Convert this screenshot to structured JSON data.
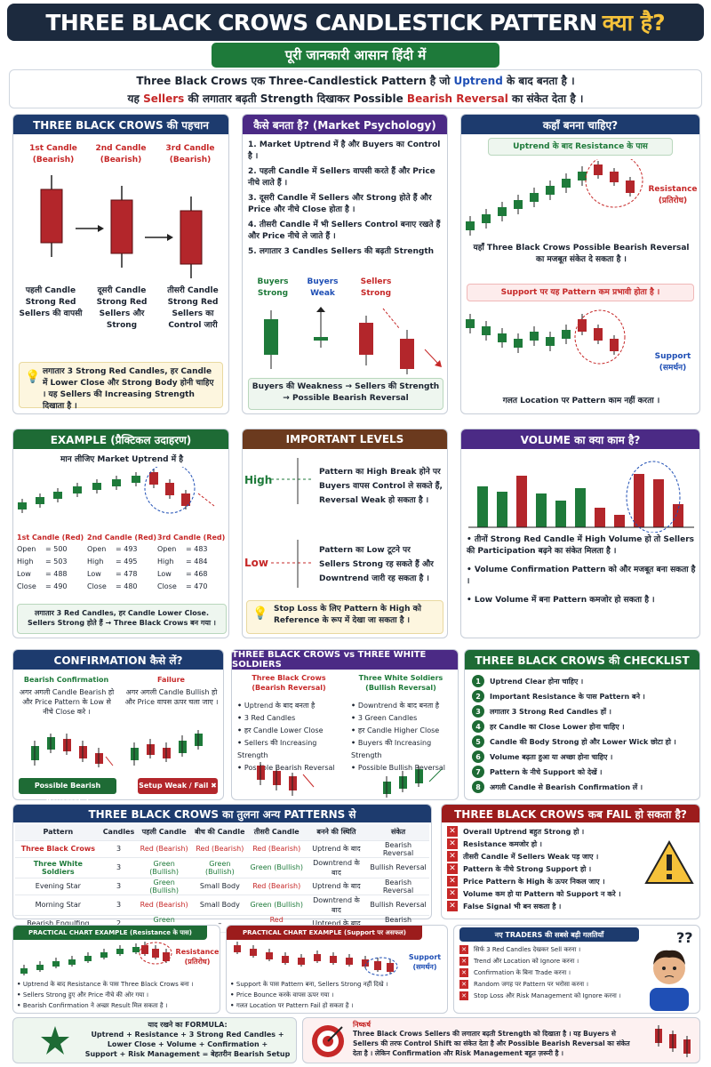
{
  "header": {
    "title": "THREE BLACK CROWS CANDLESTICK PATTERN",
    "title_suffix": "क्या है?",
    "subtitle": "पूरी जानकारी आसान हिंदी में"
  },
  "intro": {
    "l1a": "Three Black Crows एक Three-Candlestick Pattern है जो ",
    "l1b": "Uptrend",
    "l1c": " के बाद बनता है ।",
    "l2a": "यह ",
    "l2b": "Sellers",
    "l2c": " की लगातार बढ़ती Strength दिखाकर Possible ",
    "l2d": "Bearish Reversal",
    "l2e": " का संकेत देता है ।"
  },
  "identify": {
    "title": "THREE BLACK CROWS की पहचान",
    "c1": "1st Candle",
    "c2": "2nd Candle",
    "c3": "3rd Candle",
    "bear": "(Bearish)",
    "d1": [
      "पहली Candle",
      "Strong Red",
      "Sellers की वापसी"
    ],
    "d2": [
      "दूसरी Candle",
      "Strong Red",
      "Sellers और",
      "Strong"
    ],
    "d3": [
      "तीसरी Candle",
      "Strong Red",
      "Sellers का",
      "Control जारी"
    ],
    "tip": "लगातार 3 Strong Red Candles, हर Candle में Lower Close और Strong Body होनी चाहिए । यह Sellers की Increasing Strength दिखाता है ।"
  },
  "psych": {
    "title": "कैसे बनता है? (Market Psychology)",
    "items": [
      "1.  Market Uptrend में है और Buyers का Control है ।",
      "2.  पहली Candle में Sellers वापसी करते हैं और Price नीचे लाते हैं ।",
      "3.  दूसरी Candle में Sellers और Strong होते हैं और Price और नीचे Close होता है ।",
      "4.  तीसरी Candle में भी Sellers Control बनाए रखते हैं और Price नीचे ले जाते हैं ।",
      "5.  लगातार 3 Candles Sellers की बढ़ती Strength"
    ],
    "b1": "Buyers",
    "b1b": "Strong",
    "b2": "Buyers",
    "b2b": "Weak",
    "b3": "Sellers",
    "b3b": "Strong",
    "summary1": "Buyers की Weakness → Sellers की Strength",
    "summary2": "→ Possible Bearish Reversal"
  },
  "where": {
    "title": "कहाँ बनना चाहिए?",
    "tag": "Uptrend के बाद Resistance के पास",
    "res": "Resistance",
    "res_hi": "(प्रतिरोध)",
    "good": "यहाँ Three Black Crows Possible Bearish Reversal का मजबूत संकेत दे सकता है ।",
    "tag2": "Support पर यह Pattern कम प्रभावी होता है ।",
    "sup": "Support",
    "sup_hi": "(समर्थन)",
    "bad": "गलत Location पर Pattern काम नहीं करता ।"
  },
  "example": {
    "title": "EXAMPLE (प्रैक्टिकल उदाहरण)",
    "intro": "मान लीजिए Market Uptrend में है",
    "cols": [
      {
        "name": "1st Candle (Red)",
        "rows": [
          [
            "Open",
            "= 500"
          ],
          [
            "High",
            "= 503"
          ],
          [
            "Low",
            "= 488"
          ],
          [
            "Close",
            "= 490"
          ]
        ]
      },
      {
        "name": "2nd Candle (Red)",
        "rows": [
          [
            "Open",
            "= 493"
          ],
          [
            "High",
            "= 495"
          ],
          [
            "Low",
            "= 478"
          ],
          [
            "Close",
            "= 480"
          ]
        ]
      },
      {
        "name": "3rd Candle (Red)",
        "rows": [
          [
            "Open",
            "= 483"
          ],
          [
            "High",
            "= 484"
          ],
          [
            "Low",
            "= 468"
          ],
          [
            "Close",
            "= 470"
          ]
        ]
      }
    ],
    "note1": "लगातार 3 Red Candles, हर Candle Lower Close.",
    "note2": "Sellers Strong होते हैं → Three Black Crows बन गया ।"
  },
  "levels": {
    "title": "IMPORTANT LEVELS",
    "high": "High",
    "high_txt": "Pattern का High Break होने पर Buyers वापस Control ले सकते हैं, Reversal Weak हो सकता है ।",
    "low": "Low",
    "low_txt": "Pattern का Low टूटने पर Sellers Strong रह सकते हैं और Downtrend जारी रह सकता है ।",
    "tip": "Stop Loss के लिए Pattern के High को Reference के रूप में देखा जा सकता है ।"
  },
  "volume": {
    "title": "VOLUME का क्या काम है?",
    "items": [
      "तीनों Strong Red Candle में High Volume हो तो Sellers की Participation बढ़ने का संकेत मिलता है ।",
      "Volume Confirmation Pattern को और मजबूत बना सकता है ।",
      "Low Volume में बना Pattern कमजोर हो सकता है ।"
    ]
  },
  "confirm": {
    "title": "CONFIRMATION कैसे लें?",
    "h1": "Bearish Confirmation",
    "t1": "अगर अगली Candle Bearish हो और Price Pattern के Low से नीचे Close करे ।",
    "h2": "Failure",
    "t2": "अगर अगली Candle Bullish हो और Price वापस ऊपर चला जाए ।",
    "b1": "Possible Bearish Reversal ✔",
    "b2": "Setup Weak / Fail ✖"
  },
  "vs": {
    "title": "THREE BLACK CROWS vs THREE WHITE SOLDIERS",
    "h1": "Three Black Crows",
    "h1b": "(Bearish Reversal)",
    "h2": "Three White Soldiers",
    "h2b": "(Bullish Reversal)",
    "l1": [
      "Uptrend के बाद बनता है",
      "3 Red Candles",
      "हर Candle Lower Close",
      "Sellers की Increasing Strength",
      "Possible Bearish Reversal"
    ],
    "l2": [
      "Downtrend के बाद बनता है",
      "3 Green Candles",
      "हर Candle Higher Close",
      "Buyers की Increasing Strength",
      "Possible Bullish Reversal"
    ]
  },
  "checklist": {
    "title": "THREE BLACK CROWS की CHECKLIST",
    "items": [
      "Uptrend Clear होना चाहिए ।",
      "Important Resistance के पास Pattern बने ।",
      "लगातार 3 Strong Red Candles हों ।",
      "हर Candle का Close Lower होना चाहिए ।",
      "Candle की Body Strong हो और Lower Wick छोटा हो ।",
      "Volume बढ़ता हुआ या अच्छा होना चाहिए ।",
      "Pattern के नीचे Support को देखें ।",
      "अगली Candle से Bearish Confirmation लें ।"
    ]
  },
  "compare": {
    "title": "THREE BLACK CROWS का तुलना अन्य PATTERNS से",
    "head": [
      "Pattern",
      "Candles",
      "पहली Candle",
      "बीच की Candle",
      "तीसरी Candle",
      "बनने की स्थिति",
      "संकेत"
    ],
    "rows": [
      [
        "Three Black Crows",
        "3",
        "Red (Bearish)",
        "Red (Bearish)",
        "Red (Bearish)",
        "Uptrend के बाद",
        "Bearish Reversal"
      ],
      [
        "Three White Soldiers",
        "3",
        "Green (Bullish)",
        "Green (Bullish)",
        "Green (Bullish)",
        "Downtrend के बाद",
        "Bullish Reversal"
      ],
      [
        "Evening Star",
        "3",
        "Green (Bullish)",
        "Small Body",
        "Red (Bearish)",
        "Uptrend के बाद",
        "Bearish Reversal"
      ],
      [
        "Morning Star",
        "3",
        "Red (Bearish)",
        "Small Body",
        "Green (Bullish)",
        "Downtrend के बाद",
        "Bullish Reversal"
      ],
      [
        "Bearish Engulfing",
        "2",
        "Green (Bullish)",
        "–",
        "Red (Engulfing)",
        "Uptrend के बाद",
        "Bearish Reversal"
      ]
    ]
  },
  "fail": {
    "title": "THREE BLACK CROWS कब FAIL हो सकता है?",
    "items": [
      "Overall Uptrend बहुत Strong हो ।",
      "Resistance कमजोर हो ।",
      "तीसरी Candle में Sellers Weak पड़ जाए ।",
      "Pattern के नीचे Strong Support हो ।",
      "Price Pattern के High के ऊपर निकल जाए ।",
      "Volume कम हो या Pattern को Support न करे ।",
      "False Signal भी बन सकता है ।"
    ]
  },
  "pr1": {
    "title": "PRACTICAL CHART EXAMPLE (Resistance के पास)",
    "res": "Resistance",
    "res_hi": "(प्रतिरोध)",
    "items": [
      "Uptrend के बाद Resistance के पास Three Black Crows बना ।",
      "Sellers Strong हुए और Price नीचे की ओर गया ।",
      "Bearish Confirmation ने अच्छा Result मिल सकता है ।"
    ]
  },
  "pr2": {
    "title": "PRACTICAL CHART EXAMPLE (Support पर असफल)",
    "sup": "Support",
    "sup_hi": "(समर्थन)",
    "items": [
      "Support के पास Pattern बना, Sellers Strong नहीं दिखे ।",
      "Price Bounce करके वापस ऊपर गया ।",
      "गलत Location पर Pattern Fail हो सकता है ।"
    ]
  },
  "mistakes": {
    "title": "नए TRADERS की सबसे बड़ी गलतियाँ",
    "items": [
      "सिर्फ 3 Red Candles देखकर Sell करना ।",
      "Trend और Location को Ignore करना ।",
      "Confirmation के बिना Trade करना ।",
      "Random जगह पर Pattern पर भरोसा करना ।",
      "Stop Loss और Risk Management को Ignore करना ।"
    ],
    "q": "??"
  },
  "formula": {
    "title": "याद रखने का FORMULA:",
    "lines": [
      "Uptrend + Resistance + 3 Strong Red Candles +",
      "Lower Close + Volume + Confirmation +",
      "Support + Risk Management = बेहतरीन Bearish Setup"
    ]
  },
  "conclusion": {
    "title": "निष्कर्ष",
    "text": "Three Black Crows Sellers की लगातार बढ़ती Strength को दिखाता है । यह Buyers से Sellers की तरफ Control Shift का संकेत देता है और Possible Bearish Reversal का संकेत देता है । लेकिन Confirmation और Risk Management बहुत ज़रूरी है ।"
  }
}
